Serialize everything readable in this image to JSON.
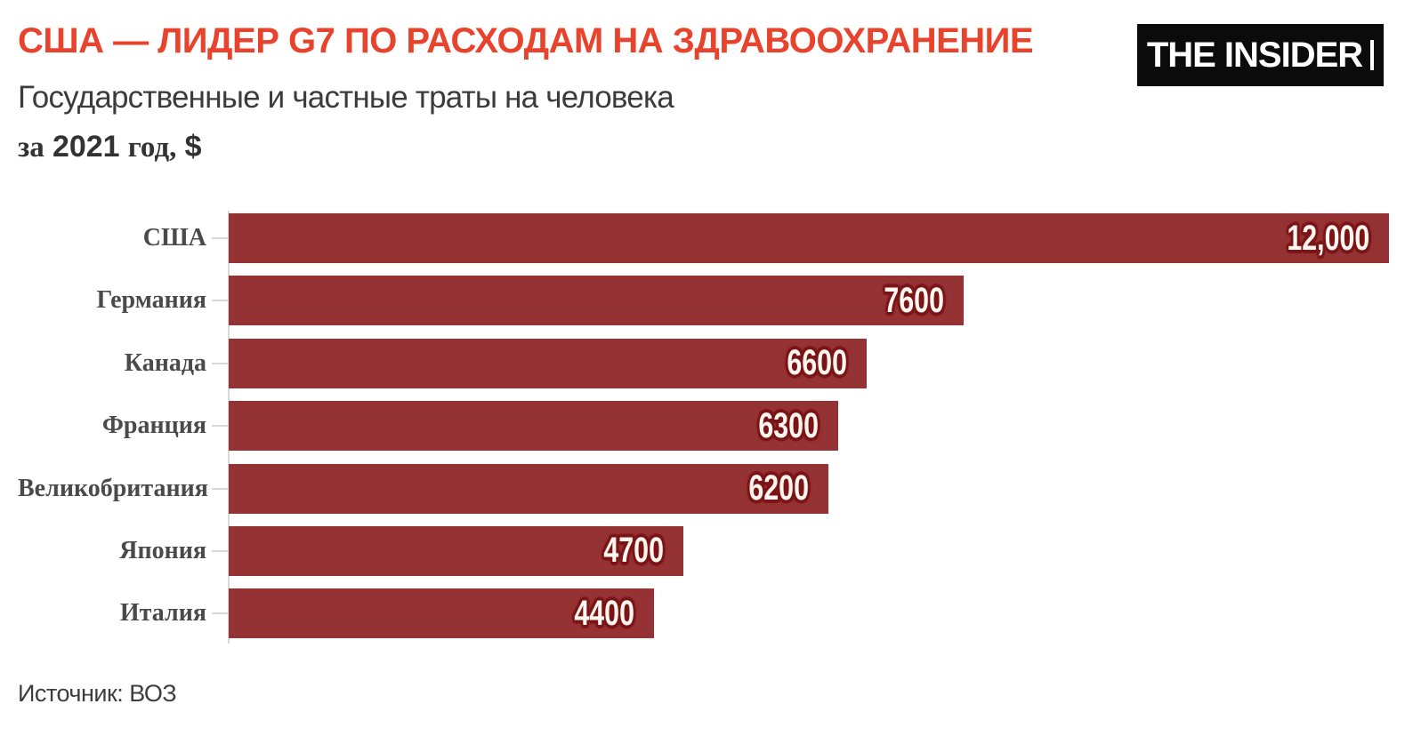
{
  "header": {
    "title": "США — ЛИДЕР G7 ПО РАСХОДАМ НА ЗДРАВООХРАНЕНИЕ",
    "subtitle": "Государственные и частные траты на человека",
    "period": {
      "prefix": "за",
      "year": "2021",
      "middle": "год,",
      "currency": "$"
    }
  },
  "logo": {
    "text": "THE INSIDER"
  },
  "chart_data": {
    "type": "bar",
    "orientation": "horizontal",
    "title": "США — лидер G7 по расходам на здравоохранение",
    "categories": [
      "США",
      "Германия",
      "Канада",
      "Франция",
      "Великобритания",
      "Япония",
      "Италия"
    ],
    "values": [
      12000,
      7600,
      6600,
      6300,
      6200,
      4700,
      4400
    ],
    "value_labels": [
      "12,000",
      "7600",
      "6600",
      "6300",
      "6200",
      "4700",
      "4400"
    ],
    "xlabel": "",
    "ylabel": "",
    "xlim": [
      0,
      12000
    ],
    "grid": false,
    "legend": false,
    "units": "$ per person, 2021"
  },
  "theme": {
    "title_color": "#e8432d",
    "bar_color": "#953233",
    "value_outline_color": "#7a1416",
    "value_text_color": "#fff7ef",
    "axis_color": "#d9d9d9",
    "label_color": "#4a4a4a"
  },
  "source": {
    "label": "Источник: ВОЗ"
  }
}
